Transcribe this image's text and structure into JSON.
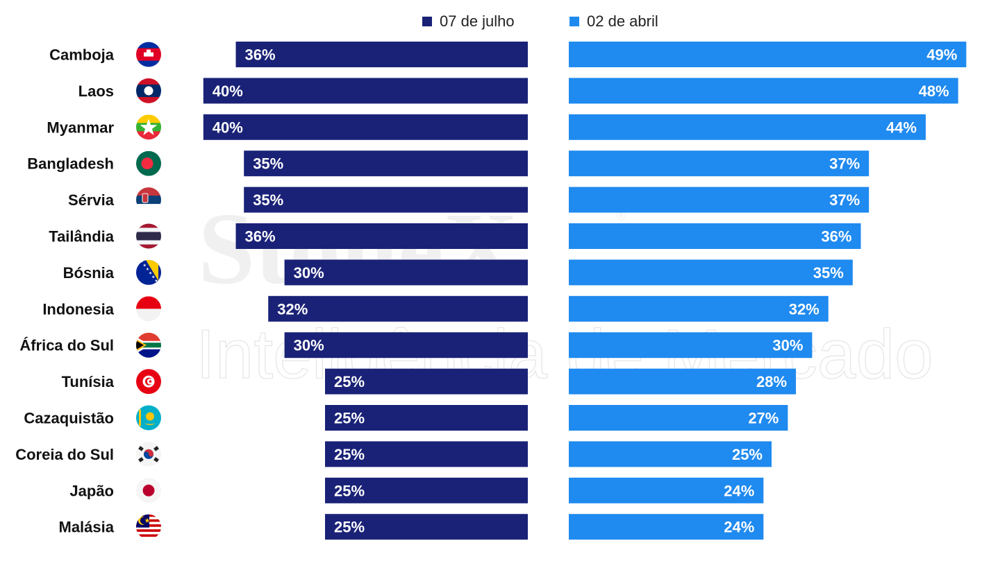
{
  "chart_data": {
    "type": "bar",
    "categories": [
      "Camboja",
      "Laos",
      "Myanmar",
      "Bangladesh",
      "Sérvia",
      "Tailândia",
      "Bósnia",
      "Indonesia",
      "África do Sul",
      "Tunísia",
      "Cazaquistão",
      "Coreia do Sul",
      "Japão",
      "Malásia"
    ],
    "series": [
      {
        "name": "07 de julho",
        "color": "#1a2277",
        "values": [
          36,
          40,
          40,
          35,
          35,
          36,
          30,
          32,
          30,
          25,
          25,
          25,
          25,
          25
        ]
      },
      {
        "name": "02 de abril",
        "color": "#1f8aef",
        "values": [
          49,
          48,
          44,
          37,
          37,
          36,
          35,
          32,
          30,
          28,
          27,
          25,
          24,
          24
        ]
      }
    ],
    "value_suffix": "%",
    "legend_position": "top-center",
    "layout_style": "butterfly",
    "flags": [
      "cambodia-flag-icon",
      "laos-flag-icon",
      "myanmar-flag-icon",
      "bangladesh-flag-icon",
      "serbia-flag-icon",
      "thailand-flag-icon",
      "bosnia-flag-icon",
      "indonesia-flag-icon",
      "south-africa-flag-icon",
      "tunisia-flag-icon",
      "kazakhstan-flag-icon",
      "south-korea-flag-icon",
      "japan-flag-icon",
      "malaysia-flag-icon"
    ]
  },
  "watermark": {
    "brand": "StoneX",
    "tagline": "Inteligência de Mercado",
    "registered": "®"
  }
}
